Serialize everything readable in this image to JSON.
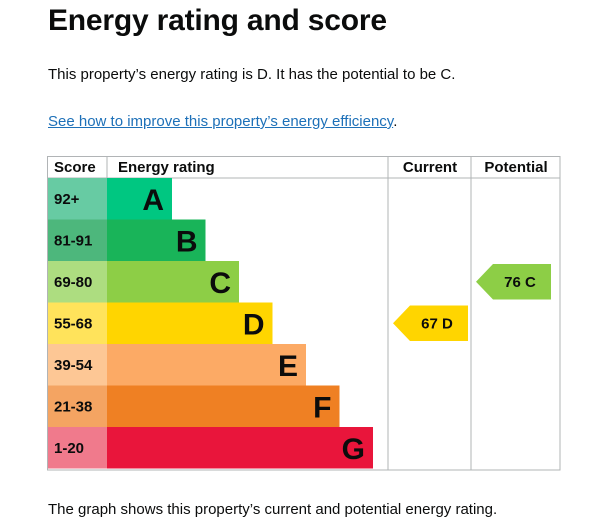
{
  "page": {
    "title": "Energy rating and score",
    "summary": "This property’s energy rating is D. It has the potential to be C.",
    "link_text": "See how to improve this property’s energy efficiency",
    "link_suffix": ".",
    "footer": "The graph shows this property’s current and potential energy rating."
  },
  "chart_data": {
    "type": "bar",
    "headers": {
      "score": "Score",
      "rating": "Energy rating",
      "current": "Current",
      "potential": "Potential"
    },
    "bands": [
      {
        "range": "92+",
        "letter": "A",
        "color": "#00c781",
        "score_bg": "#67cba3"
      },
      {
        "range": "81-91",
        "letter": "B",
        "color": "#19b459",
        "score_bg": "#4db77c"
      },
      {
        "range": "69-80",
        "letter": "C",
        "color": "#8dce46",
        "score_bg": "#addd80"
      },
      {
        "range": "55-68",
        "letter": "D",
        "color": "#ffd500",
        "score_bg": "#ffe35b"
      },
      {
        "range": "39-54",
        "letter": "E",
        "color": "#fcaa65",
        "score_bg": "#fdc795"
      },
      {
        "range": "21-38",
        "letter": "F",
        "color": "#ef8023",
        "score_bg": "#f4a462"
      },
      {
        "range": "1-20",
        "letter": "G",
        "color": "#e9153b",
        "score_bg": "#f07a8c"
      }
    ],
    "current": {
      "score": 67,
      "letter": "D",
      "color": "#ffd500"
    },
    "potential": {
      "score": 76,
      "letter": "C",
      "color": "#8dce46"
    }
  }
}
